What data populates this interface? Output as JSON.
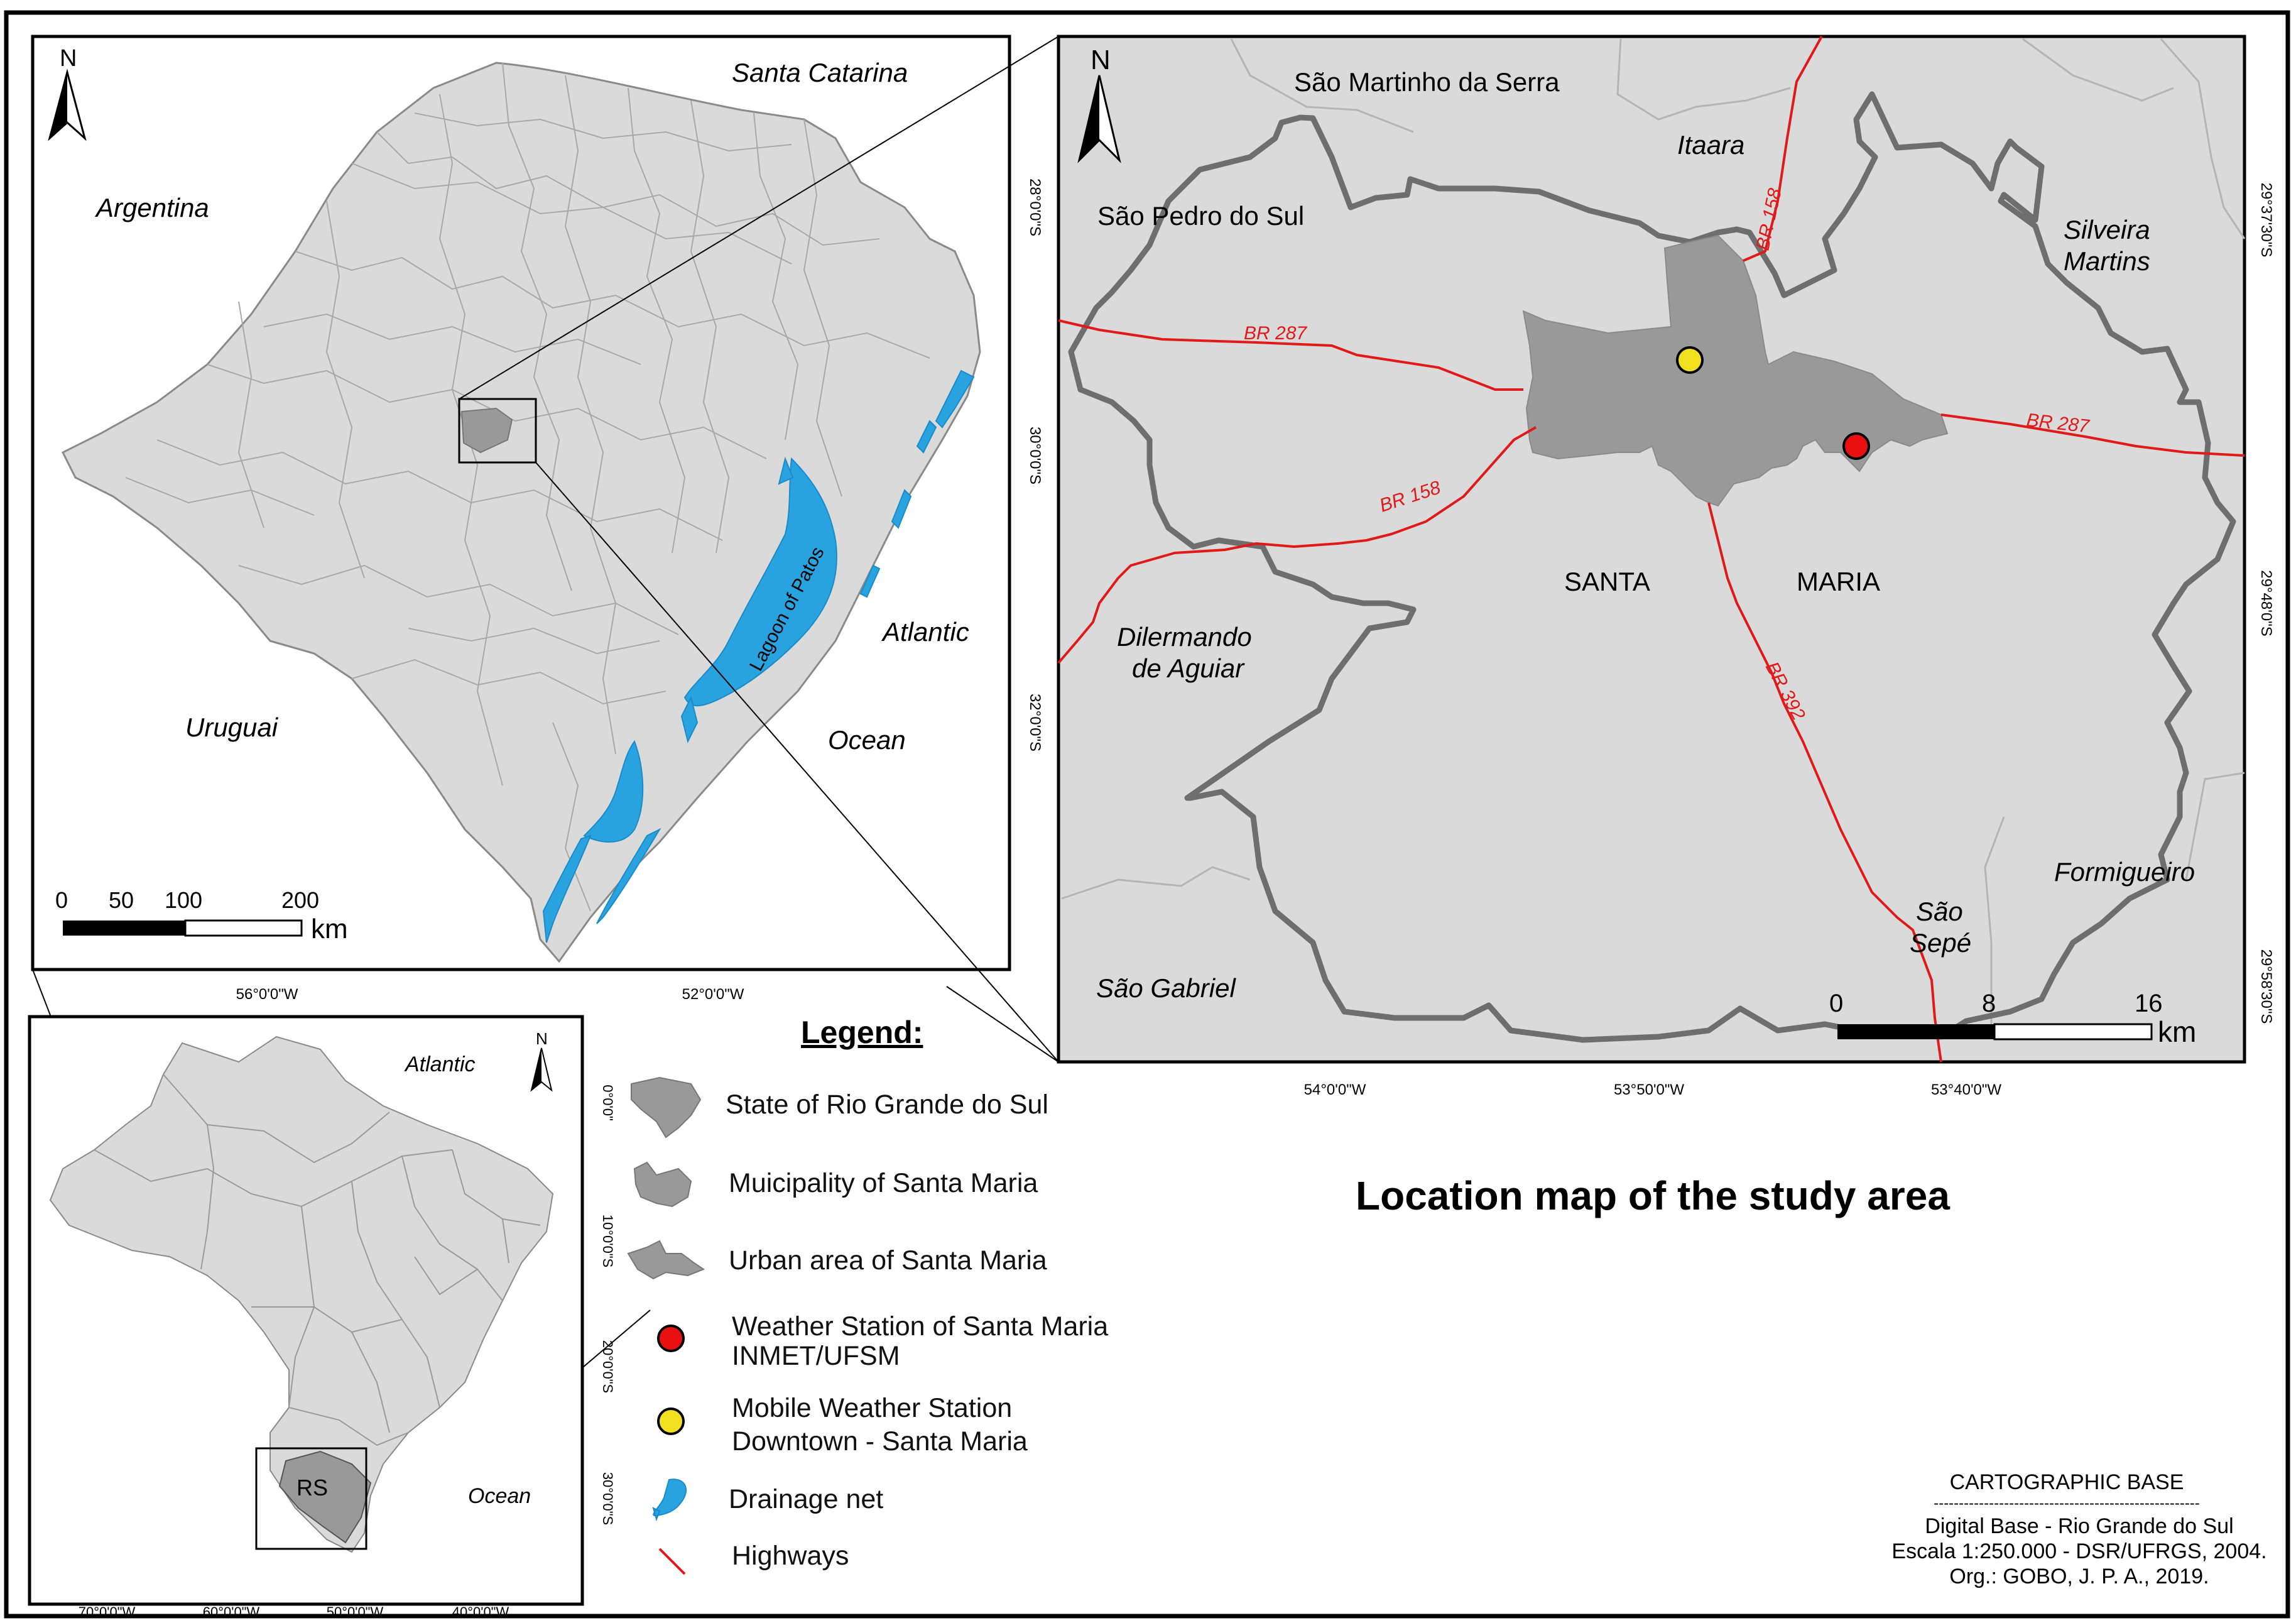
{
  "title": "Location map of the study area",
  "colors": {
    "land": "#dadada",
    "municipality": "#999999",
    "boundary": "#6e6e6e",
    "water": "#29a3e0",
    "highway": "#e01a1a",
    "weather_station": "#e81010",
    "mobile_station": "#f0e020"
  },
  "rs_map": {
    "labels": {
      "santa_catarina": "Santa Catarina",
      "argentina": "Argentina",
      "uruguai": "Uruguai",
      "atlantic": "Atlantic",
      "ocean": "Ocean",
      "lagoon": "Lagoon  of  Patos"
    },
    "north": "N",
    "lat_ticks": [
      "28°0'0\"S",
      "30°0'0\"S",
      "32°0'0\"S"
    ],
    "lon_ticks": [
      "56°0'0\"W",
      "52°0'0\"W"
    ],
    "scale": {
      "ticks": [
        "0",
        "50",
        "100",
        "200"
      ],
      "unit": "km"
    }
  },
  "brazil_map": {
    "labels": {
      "atlantic": "Atlantic",
      "ocean": "Ocean",
      "rs": "RS"
    },
    "north": "N",
    "lat_ticks": [
      "0°0'0\"",
      "10°0'0\"S",
      "20°0'0\"S",
      "30°0'0\"S"
    ],
    "lon_ticks": [
      "70°0'0\"W",
      "60°0'0\"W",
      "50°0'0\"W",
      "40°0'0\"W"
    ]
  },
  "santa_maria_map": {
    "north": "N",
    "neighbors": {
      "sao_martinho": "São Martinho da Serra",
      "itaara": "Itaara",
      "sao_pedro": "São Pedro do Sul",
      "silveira_1": "Silveira",
      "silveira_2": "Martins",
      "dilermando_1": "Dilermando",
      "dilermando_2": "de Aguiar",
      "formigueiro": "Formigueiro",
      "sao_sepe_1": "São",
      "sao_sepe_2": "Sepé",
      "sao_gabriel": "São Gabriel"
    },
    "municipality_1": "SANTA",
    "municipality_2": "MARIA",
    "highways": {
      "br287_w": "BR 287",
      "br287_e": "BR 287",
      "br158_n": "BR 158",
      "br158_s": "BR 158",
      "br392": "BR 392"
    },
    "lat_ticks": [
      "29°37'30\"S",
      "29°48'0\"S",
      "29°58'30\"S"
    ],
    "lon_ticks": [
      "54°0'0\"W",
      "53°50'0\"W",
      "53°40'0\"W"
    ],
    "scale": {
      "ticks": [
        "0",
        "8",
        "16"
      ],
      "unit": "km"
    }
  },
  "legend": {
    "heading": "Legend:",
    "items": [
      {
        "label": "State of Rio Grande do Sul"
      },
      {
        "label": "Muicipality of Santa Maria"
      },
      {
        "label": "Urban area of  Santa Maria"
      },
      {
        "label": "Weather Station of Santa Maria",
        "label2": "INMET/UFSM"
      },
      {
        "label": "Mobile Weather Station",
        "label2": "Downtown - Santa Maria"
      },
      {
        "label": "Drainage net"
      },
      {
        "label": "Highways"
      }
    ]
  },
  "credits": {
    "heading": "CARTOGRAPHIC BASE",
    "separator": "-----------------------------------------------------",
    "line1": "Digital Base - Rio Grande do Sul",
    "line2": "Escala 1:250.000 - DSR/UFRGS, 2004.",
    "line3": "Org.: GOBO, J. P. A., 2019."
  }
}
